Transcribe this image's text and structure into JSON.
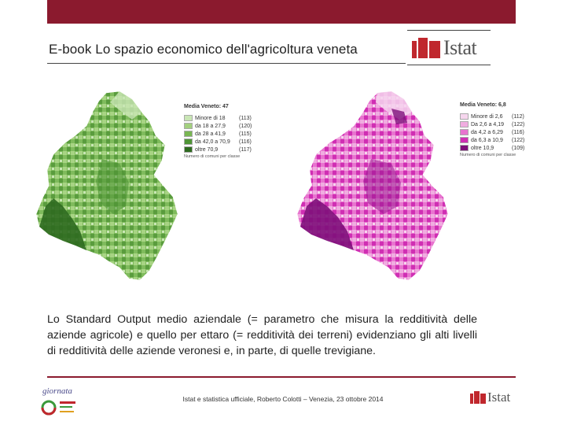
{
  "header": {
    "title": "E-book Lo spazio economico dell'agricoltura veneta",
    "logo_text": "Istat"
  },
  "map_left": {
    "legend_title": "Media Veneto: 47",
    "classes": [
      {
        "label": "Minore di 18",
        "count": "(113)",
        "color": "#c9e6b5"
      },
      {
        "label": "da 18 a 27,9",
        "count": "(120)",
        "color": "#a3d07f"
      },
      {
        "label": "da 28 a 41,9",
        "count": "(115)",
        "color": "#79b653"
      },
      {
        "label": "da 42,0 a 70,9",
        "count": "(116)",
        "color": "#4f9536"
      },
      {
        "label": "oltre 70,9",
        "count": "(117)",
        "color": "#2e6a1f"
      }
    ],
    "note": "Numero di comuni per classe"
  },
  "map_right": {
    "legend_title": "Media Veneto: 6,8",
    "classes": [
      {
        "label": "Minore di 2,6",
        "count": "(112)",
        "color": "#f6d6ee"
      },
      {
        "label": "Da 2,6 a 4,19",
        "count": "(122)",
        "color": "#f0ade0"
      },
      {
        "label": "da 4,2 a 6,29",
        "count": "(116)",
        "color": "#e874cf"
      },
      {
        "label": "da 6,3 a 10,9",
        "count": "(122)",
        "color": "#cf2fb3"
      },
      {
        "label": "oltre 10,9",
        "count": "(109)",
        "color": "#7e0f7a"
      }
    ],
    "note": "Numero di comuni per classe"
  },
  "body": {
    "paragraph": "Lo Standard Output medio aziendale (= parametro che misura la redditività delle aziende agricole) e quello per ettaro (= redditività dei terreni) evidenziano gli alti livelli di redditività delle aziende veronesi e, in parte, di quelle trevigiane."
  },
  "footer": {
    "text": "Istat e statistica ufficiale, Roberto Colotti – Venezia, 23 ottobre 2014",
    "left_logo_text": "giornata",
    "right_logo_text": "Istat"
  }
}
